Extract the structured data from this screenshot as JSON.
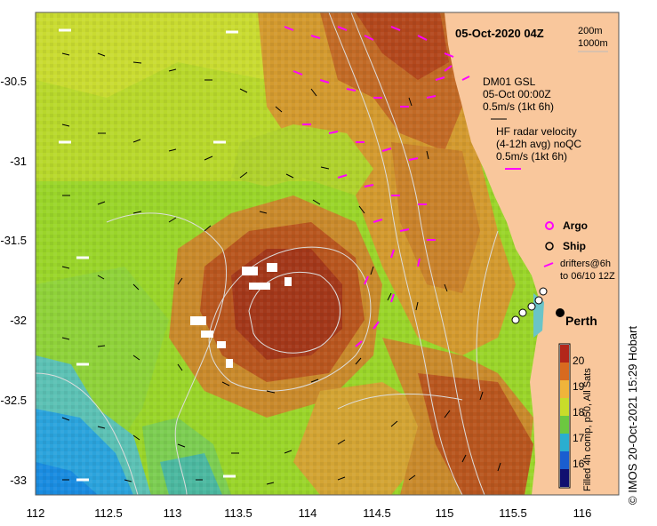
{
  "title": "05-Oct-2020 04Z",
  "contour_legend": [
    "200m",
    "1000m"
  ],
  "gsl_legend": [
    "DM01 GSL",
    "05-Oct 00:00Z",
    "0.5m/s (1kt 6h)"
  ],
  "hf_legend": [
    "HF radar velocity",
    "(4-12h avg) noQC",
    "0.5m/s (1kt 6h)"
  ],
  "argo_label": "Argo",
  "ship_label": "Ship",
  "drifter_label": [
    "drifters@6h",
    "to 06/10 12Z"
  ],
  "city": "Perth",
  "colorbar": {
    "ticks": [
      "20",
      "19",
      "18",
      "17",
      "16"
    ],
    "label": "Filled 4h comp, p50, All Sats"
  },
  "credit": "© IMOS 20-Oct-2021 15:29 Hobart",
  "axes": {
    "lat_ticks": [
      "-30.5",
      "-31",
      "-31.5",
      "-32",
      "-32.5",
      "-33"
    ],
    "lon_ticks": [
      "112",
      "112.5",
      "113",
      "113.5",
      "114",
      "114.5",
      "115",
      "115.5",
      "116"
    ]
  },
  "colors": {
    "land": "#f9c79c",
    "hf_arrow": "#ff00ff",
    "gsl_arrow": "#000000",
    "contour": "#cccccc"
  }
}
